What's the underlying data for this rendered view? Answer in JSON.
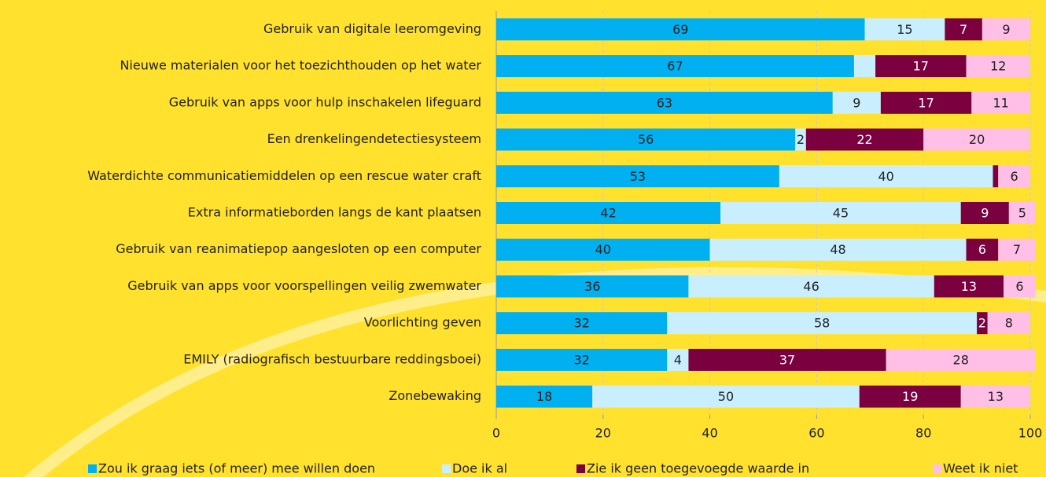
{
  "chart_data": {
    "type": "stacked_bar_horizontal",
    "categories": [
      "Gebruik van digitale leeromgeving",
      "Nieuwe materialen voor het toezichthouden op het water",
      "Gebruik van apps voor hulp inschakelen lifeguard",
      "Een drenkelingendetectiesysteem",
      "Waterdichte communicatiemiddelen op een rescue water craft",
      "Extra informatieborden langs de kant plaatsen",
      "Gebruik van reanimatiepop aangesloten op een computer",
      "Gebruik van apps voor voorspellingen veilig zwemwater",
      "Voorlichting geven",
      "EMILY (radiografisch bestuurbare reddingsboei)",
      "Zonebewaking"
    ],
    "series": [
      {
        "name": "Zou ik graag iets (of meer) mee willen doen",
        "color": "#00b0f0",
        "values": [
          69,
          67,
          63,
          56,
          53,
          42,
          40,
          36,
          32,
          32,
          18
        ]
      },
      {
        "name": "Doe ik al",
        "color": "#c9efff",
        "values": [
          15,
          4,
          9,
          2,
          40,
          45,
          48,
          46,
          58,
          4,
          50
        ],
        "value_labels": [
          "15",
          null,
          "9",
          "2",
          "40",
          "45",
          "48",
          "46",
          "58",
          "4",
          "50"
        ]
      },
      {
        "name": "Zie ik geen toegevoegde waarde in",
        "color": "#7a0040",
        "values": [
          7,
          17,
          17,
          22,
          1,
          9,
          6,
          13,
          2,
          37,
          19
        ],
        "value_labels": [
          "7",
          "17",
          "17",
          "22",
          null,
          "9",
          "6",
          "13",
          "2",
          "37",
          "19"
        ]
      },
      {
        "name": "Weet ik niet",
        "color": "#ffbfe6",
        "values": [
          9,
          12,
          11,
          20,
          6,
          5,
          7,
          6,
          8,
          28,
          13
        ]
      }
    ],
    "xlim": [
      0,
      100
    ],
    "xticks": [
      0,
      20,
      40,
      60,
      80,
      100
    ],
    "grid": true,
    "legend": "bottom"
  }
}
